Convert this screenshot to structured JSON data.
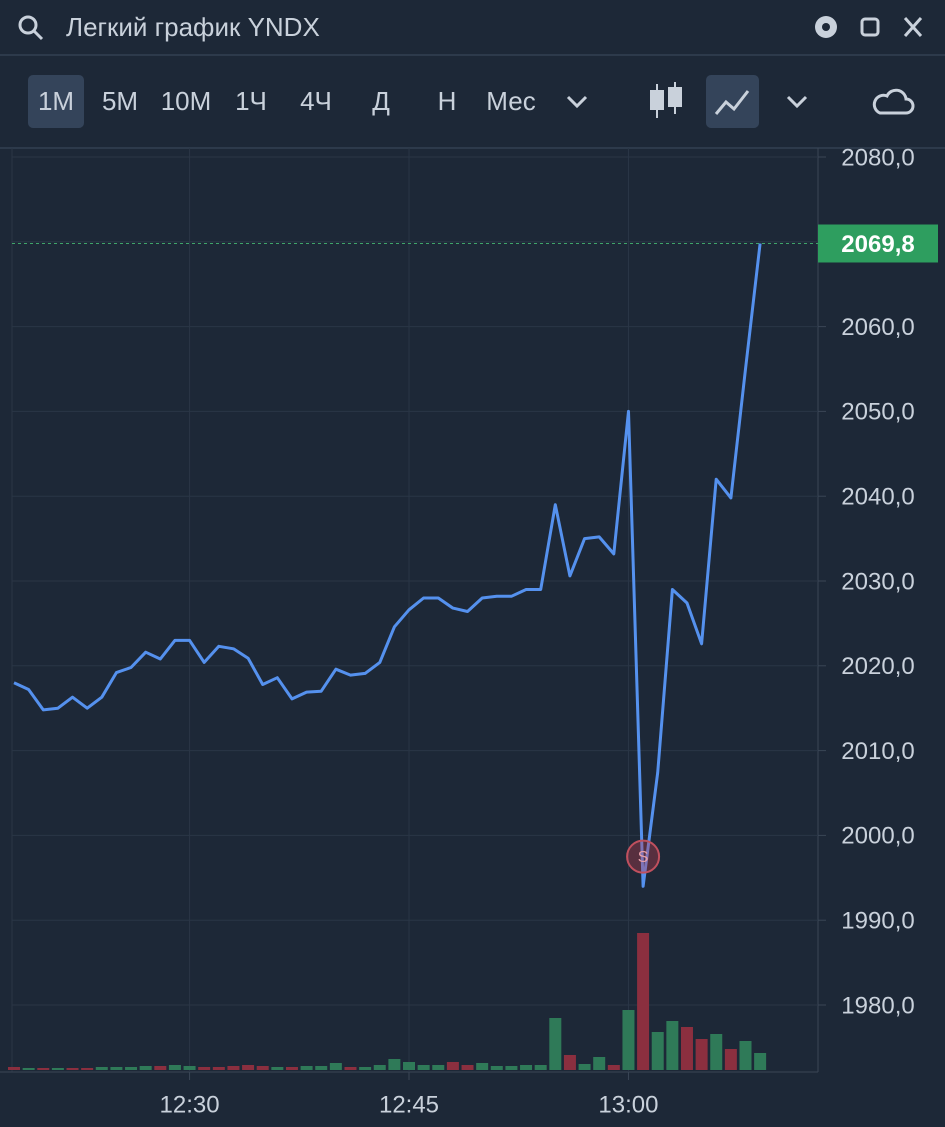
{
  "header": {
    "title": "Легкий график YNDX"
  },
  "toolbar": {
    "timeframes": [
      "1М",
      "5М",
      "10М",
      "1Ч",
      "4Ч",
      "Д",
      "Н",
      "Мес"
    ],
    "active": 0
  },
  "chart_data": {
    "type": "line",
    "x": [
      "12:18",
      "12:19",
      "12:20",
      "12:21",
      "12:22",
      "12:23",
      "12:24",
      "12:25",
      "12:26",
      "12:27",
      "12:28",
      "12:29",
      "12:30",
      "12:31",
      "12:32",
      "12:33",
      "12:34",
      "12:35",
      "12:36",
      "12:37",
      "12:38",
      "12:39",
      "12:40",
      "12:41",
      "12:42",
      "12:43",
      "12:44",
      "12:45",
      "12:46",
      "12:47",
      "12:48",
      "12:49",
      "12:50",
      "12:51",
      "12:52",
      "12:53",
      "12:54",
      "12:55",
      "12:56",
      "12:57",
      "12:58",
      "12:59",
      "13:00",
      "13:01",
      "13:02",
      "13:03",
      "13:04",
      "13:05",
      "13:06",
      "13:07",
      "13:08",
      "13:09"
    ],
    "series": [
      {
        "color": "#5591ee",
        "values": [
          2018,
          2017.2,
          2014.8,
          2015,
          2016.3,
          2015,
          2016.3,
          2019.2,
          2019.8,
          2021.6,
          2020.8,
          2023,
          2023,
          2020.4,
          2022.3,
          2022,
          2020.9,
          2017.8,
          2018.6,
          2016.1,
          2016.9,
          2017,
          2019.6,
          2018.9,
          2019.1,
          2020.4,
          2024.6,
          2026.6,
          2028,
          2028,
          2026.8,
          2026.4,
          2028,
          2028.2,
          2028.2,
          2029,
          2029,
          2039,
          2030.6,
          2035,
          2035.2,
          2033.2,
          2050,
          1994,
          2007.4,
          2029,
          2027.4,
          2022.6,
          2042,
          2039.8,
          2055,
          2069.8
        ]
      }
    ],
    "volume": {
      "values": [
        3,
        2,
        2,
        2,
        2,
        2,
        3,
        3,
        3,
        4,
        4,
        5,
        4,
        3,
        3,
        4,
        5,
        4,
        3,
        3,
        4,
        4,
        7,
        3,
        3,
        5,
        11,
        8,
        5,
        5,
        8,
        5,
        7,
        4,
        4,
        5,
        5,
        52,
        15,
        6,
        13,
        5,
        60,
        137,
        38,
        49,
        43,
        31,
        36,
        21,
        29,
        17
      ],
      "colors": [
        "#8b2f3f",
        "#2f7a58",
        "#8b2f3f",
        "#2f7a58",
        "#8b2f3f",
        "#8b2f3f",
        "#2f7a58",
        "#2f7a58",
        "#2f7a58",
        "#2f7a58",
        "#8b2f3f",
        "#2f7a58",
        "#2f7a58",
        "#8b2f3f",
        "#8b2f3f",
        "#8b2f3f",
        "#8b2f3f",
        "#8b2f3f",
        "#2f7a58",
        "#8b2f3f",
        "#2f7a58",
        "#2f7a58",
        "#2f7a58",
        "#8b2f3f",
        "#2f7a58",
        "#2f7a58",
        "#2f7a58",
        "#2f7a58",
        "#2f7a58",
        "#2f7a58",
        "#8b2f3f",
        "#8b2f3f",
        "#2f7a58",
        "#2f7a58",
        "#2f7a58",
        "#2f7a58",
        "#2f7a58",
        "#2f7a58",
        "#8b2f3f",
        "#2f7a58",
        "#2f7a58",
        "#8b2f3f",
        "#2f7a58",
        "#8b2f3f",
        "#2f7a58",
        "#2f7a58",
        "#8b2f3f",
        "#8b2f3f",
        "#2f7a58",
        "#8b2f3f",
        "#2f7a58",
        "#2f7a58"
      ]
    },
    "ylim": [
      1971,
      2081
    ],
    "yticks": [
      {
        "value": 1980,
        "label": "1980,0"
      },
      {
        "value": 1990,
        "label": "1990,0"
      },
      {
        "value": 2000,
        "label": "2000,0"
      },
      {
        "value": 2010,
        "label": "2010,0"
      },
      {
        "value": 2020,
        "label": "2020,0"
      },
      {
        "value": 2030,
        "label": "2030,0"
      },
      {
        "value": 2040,
        "label": "2040,0"
      },
      {
        "value": 2050,
        "label": "2050,0"
      },
      {
        "value": 2060,
        "label": "2060,0"
      },
      {
        "value": 2070,
        "label": "2070,0"
      },
      {
        "value": 2080,
        "label": "2080,0"
      }
    ],
    "xticks": [
      "12:30",
      "12:45",
      "13:00"
    ],
    "last_price": {
      "value": 2069.8,
      "label": "2069,8"
    },
    "marker": {
      "label": "S",
      "x": "13:01",
      "value": 1997.5
    },
    "grid": true
  }
}
